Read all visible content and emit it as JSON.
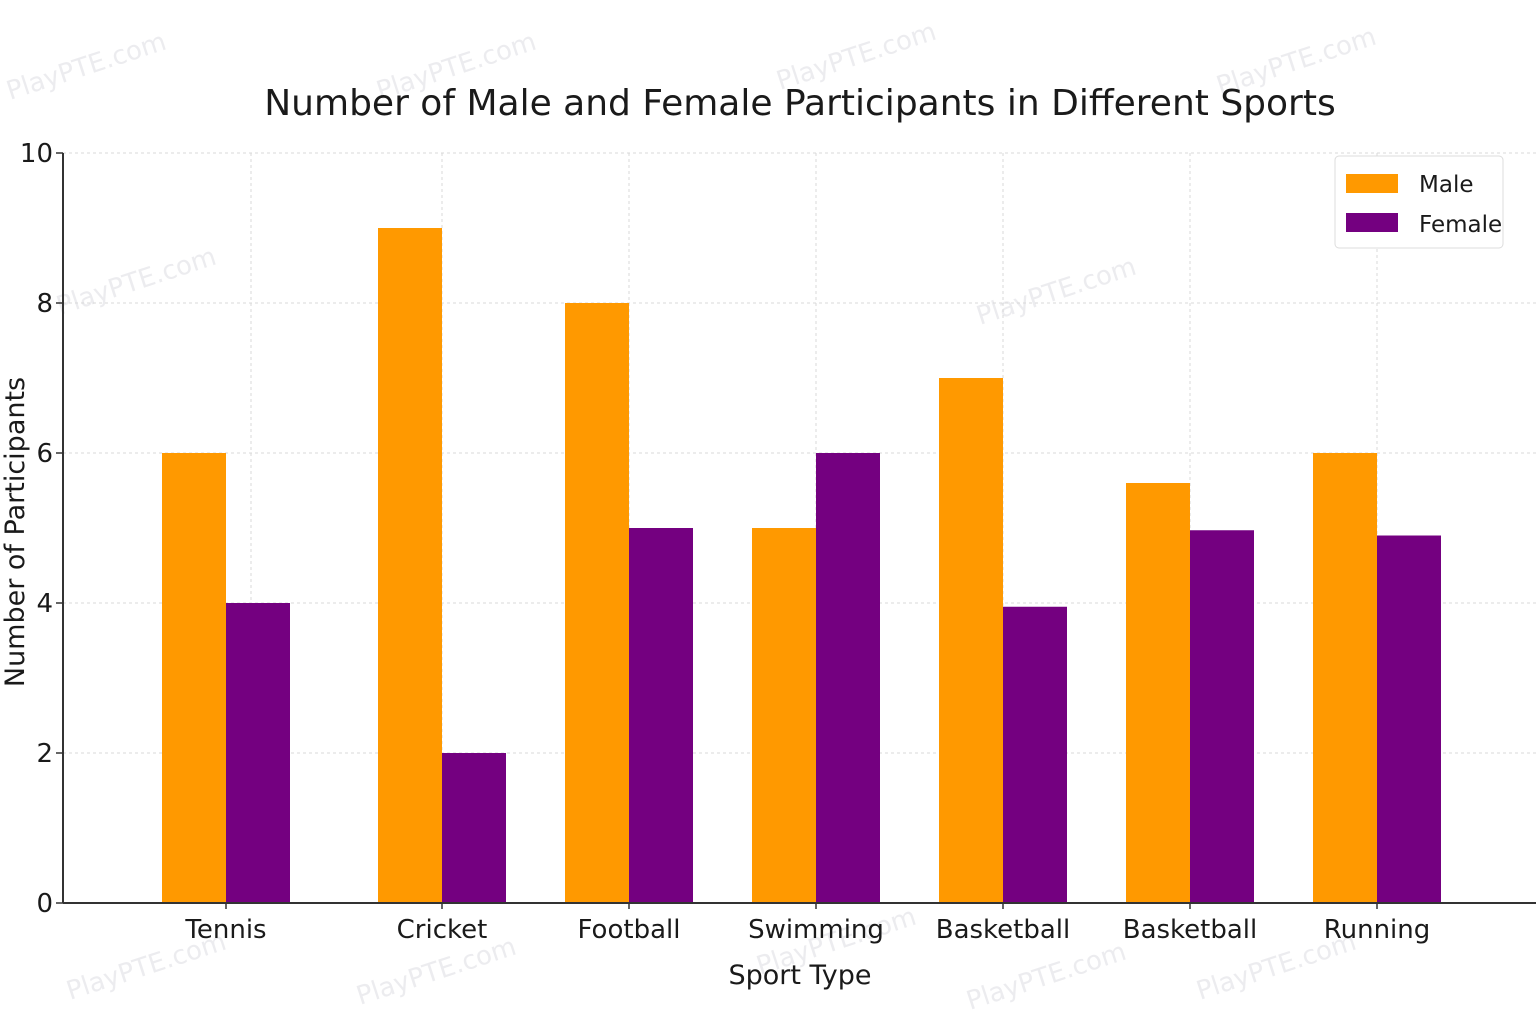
{
  "chart_data": {
    "type": "bar",
    "title": "Number of Male and Female Participants in Different Sports",
    "xlabel": "Sport Type",
    "ylabel": "Number of Participants",
    "categories": [
      "Tennis",
      "Cricket",
      "Football",
      "Swimming",
      "Basketball",
      "Basketball",
      "Running"
    ],
    "series": [
      {
        "name": "Male",
        "color": "#FF9900",
        "values": [
          6,
          9,
          8,
          5,
          7,
          5.6,
          6
        ]
      },
      {
        "name": "Female",
        "color": "#740080",
        "values": [
          4,
          2,
          5,
          6,
          3.95,
          4.97,
          4.9
        ]
      }
    ],
    "ylim": [
      0,
      10
    ],
    "yticks": [
      0,
      2,
      4,
      6,
      8,
      10
    ],
    "grid": true,
    "legend": {
      "position": "top-right",
      "entries": [
        "Male",
        "Female"
      ]
    },
    "watermark": "PlayPTE.com"
  }
}
